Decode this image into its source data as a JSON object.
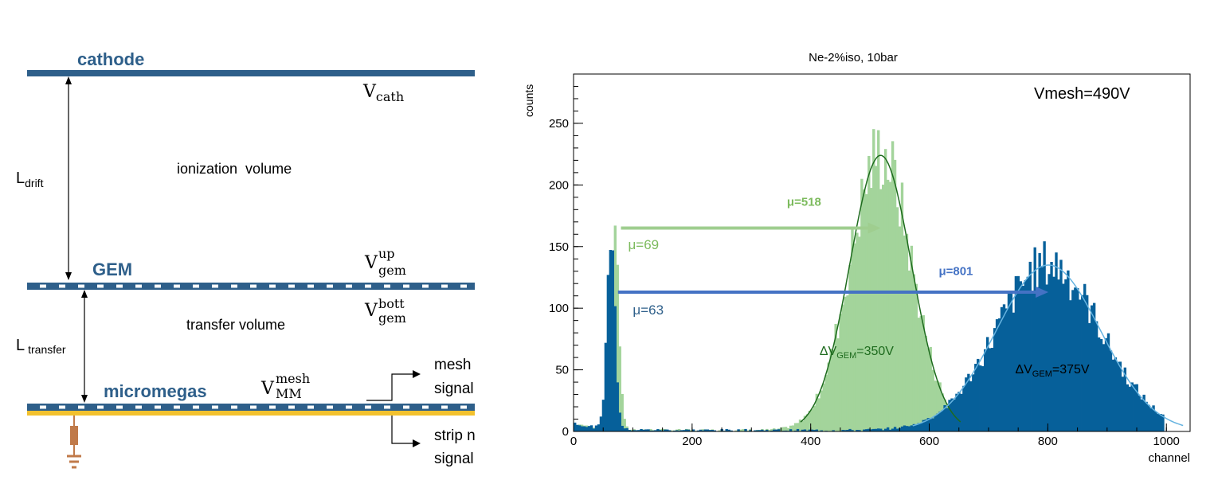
{
  "diagram": {
    "cathode_label": "cathode",
    "gem_label": "GEM",
    "micromegas_label": "micromegas",
    "v_cath": {
      "base": "V",
      "sub": "cath"
    },
    "v_gem_up": {
      "base": "V",
      "sup": "up",
      "sub": "gem"
    },
    "v_gem_bott": {
      "base": "V",
      "sup": "bott",
      "sub": "gem"
    },
    "v_mm_mesh": {
      "base": "V",
      "sup": "mesh",
      "sub": "MM"
    },
    "l_drift": {
      "base": "L",
      "sub": "drift"
    },
    "l_transfer": {
      "base": "L",
      "sub": "transfer"
    },
    "ionization_volume": "ionization  volume",
    "transfer_volume": "transfer volume",
    "mesh_signal": [
      "mesh",
      "signal"
    ],
    "strip_signal": [
      "strip n",
      "signal"
    ],
    "colors": {
      "electrode": "#2e5f8a",
      "label": "#2e5f8a",
      "strip": "#f2c12e",
      "resistor": "#c07a4a"
    }
  },
  "chart_data": {
    "type": "histogram",
    "title": "Ne-2%iso, 10bar",
    "xlabel": "channel",
    "ylabel": "counts",
    "xlim": [
      0,
      1040
    ],
    "ylim": [
      0,
      290
    ],
    "xticks": [
      0,
      200,
      400,
      600,
      800,
      1000
    ],
    "yticks": [
      0,
      50,
      100,
      150,
      200,
      250
    ],
    "annotation": "Vmesh=490V",
    "series": [
      {
        "color": "#a3d49b",
        "label_text": "ΔV",
        "label_sub": "GEM",
        "label_rest": "=350V",
        "mean_label": "μ=518",
        "pedestal_label": "μ=69",
        "fit_color": "#1e6b1e",
        "pedestal": {
          "mu": 69,
          "sigma": 7,
          "amp": 170
        },
        "peak": {
          "mu": 518,
          "sigma": 52,
          "amp": 224
        },
        "range": [
          0,
          640
        ]
      },
      {
        "color": "#06609a",
        "label_text": "ΔV",
        "label_sub": "GEM",
        "label_rest": "=375V",
        "mean_label": "μ=801",
        "pedestal_label": "μ=63",
        "fit_color": "#66b3e0",
        "pedestal": {
          "mu": 63,
          "sigma": 7,
          "amp": 155
        },
        "peak": {
          "mu": 801,
          "sigma": 88,
          "amp": 135
        },
        "range": [
          0,
          995
        ]
      }
    ],
    "arrows": [
      {
        "color": "#9fce8f",
        "from": 80,
        "to": 518,
        "y": 165
      },
      {
        "color": "#4472c4",
        "from": 75,
        "to": 801,
        "y": 113
      }
    ]
  }
}
